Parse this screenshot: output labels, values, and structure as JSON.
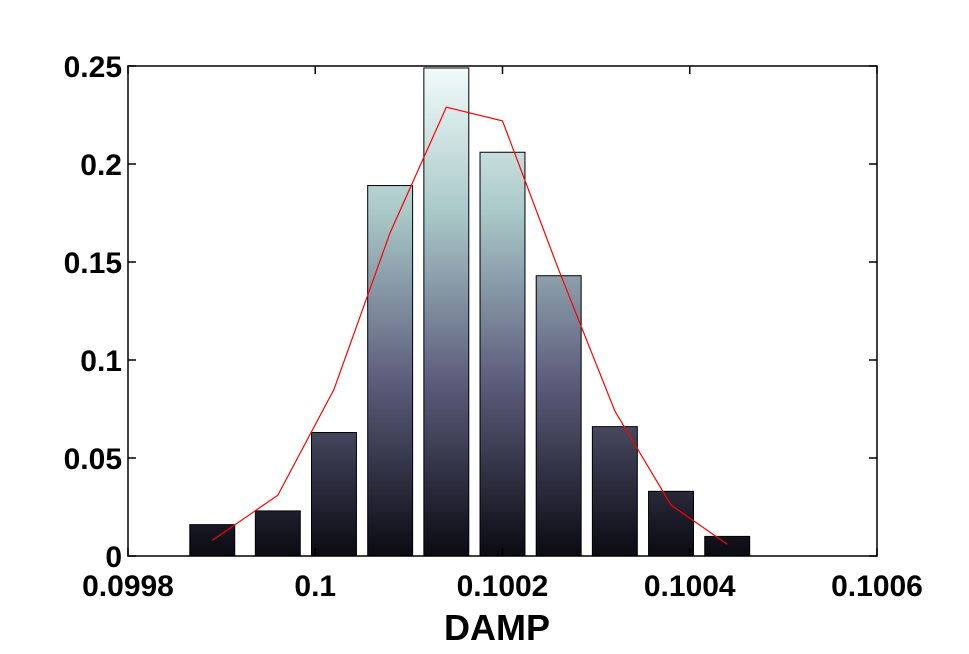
{
  "chart_data": {
    "type": "bar",
    "title": "",
    "xlabel": "DAMP",
    "ylabel": "",
    "xlim": [
      0.0998,
      0.1006
    ],
    "ylim": [
      0,
      0.25
    ],
    "x_ticks": [
      0.0998,
      0.1,
      0.1002,
      0.1004,
      0.1006
    ],
    "x_tick_labels": [
      "0.0998",
      "0.1",
      "0.1002",
      "0.1004",
      "0.1006"
    ],
    "y_ticks": [
      0,
      0.05,
      0.1,
      0.15,
      0.2,
      0.25
    ],
    "y_tick_labels": [
      "0",
      "0.05",
      "0.1",
      "0.15",
      "0.2",
      "0.25"
    ],
    "grid": false,
    "legend": "none",
    "bar_gradient": [
      "#f3fbfb",
      "#a9c8c8",
      "#5b5b7a",
      "#0a0a12"
    ],
    "bars": {
      "centers": [
        0.09989,
        0.09996,
        0.10002,
        0.10008,
        0.10014,
        0.1002,
        0.10026,
        0.10032,
        0.10038,
        0.10044
      ],
      "width": 4.8e-05,
      "values": [
        0.016,
        0.023,
        0.063,
        0.189,
        0.249,
        0.206,
        0.143,
        0.066,
        0.033,
        0.01
      ]
    },
    "series": [
      {
        "type": "line",
        "color": "#ff0000",
        "x": [
          0.09989,
          0.09996,
          0.10002,
          0.10008,
          0.10014,
          0.1002,
          0.10026,
          0.10032,
          0.10038,
          0.10044
        ],
        "values": [
          0.008,
          0.031,
          0.085,
          0.165,
          0.229,
          0.222,
          0.146,
          0.074,
          0.026,
          0.006
        ]
      }
    ]
  }
}
